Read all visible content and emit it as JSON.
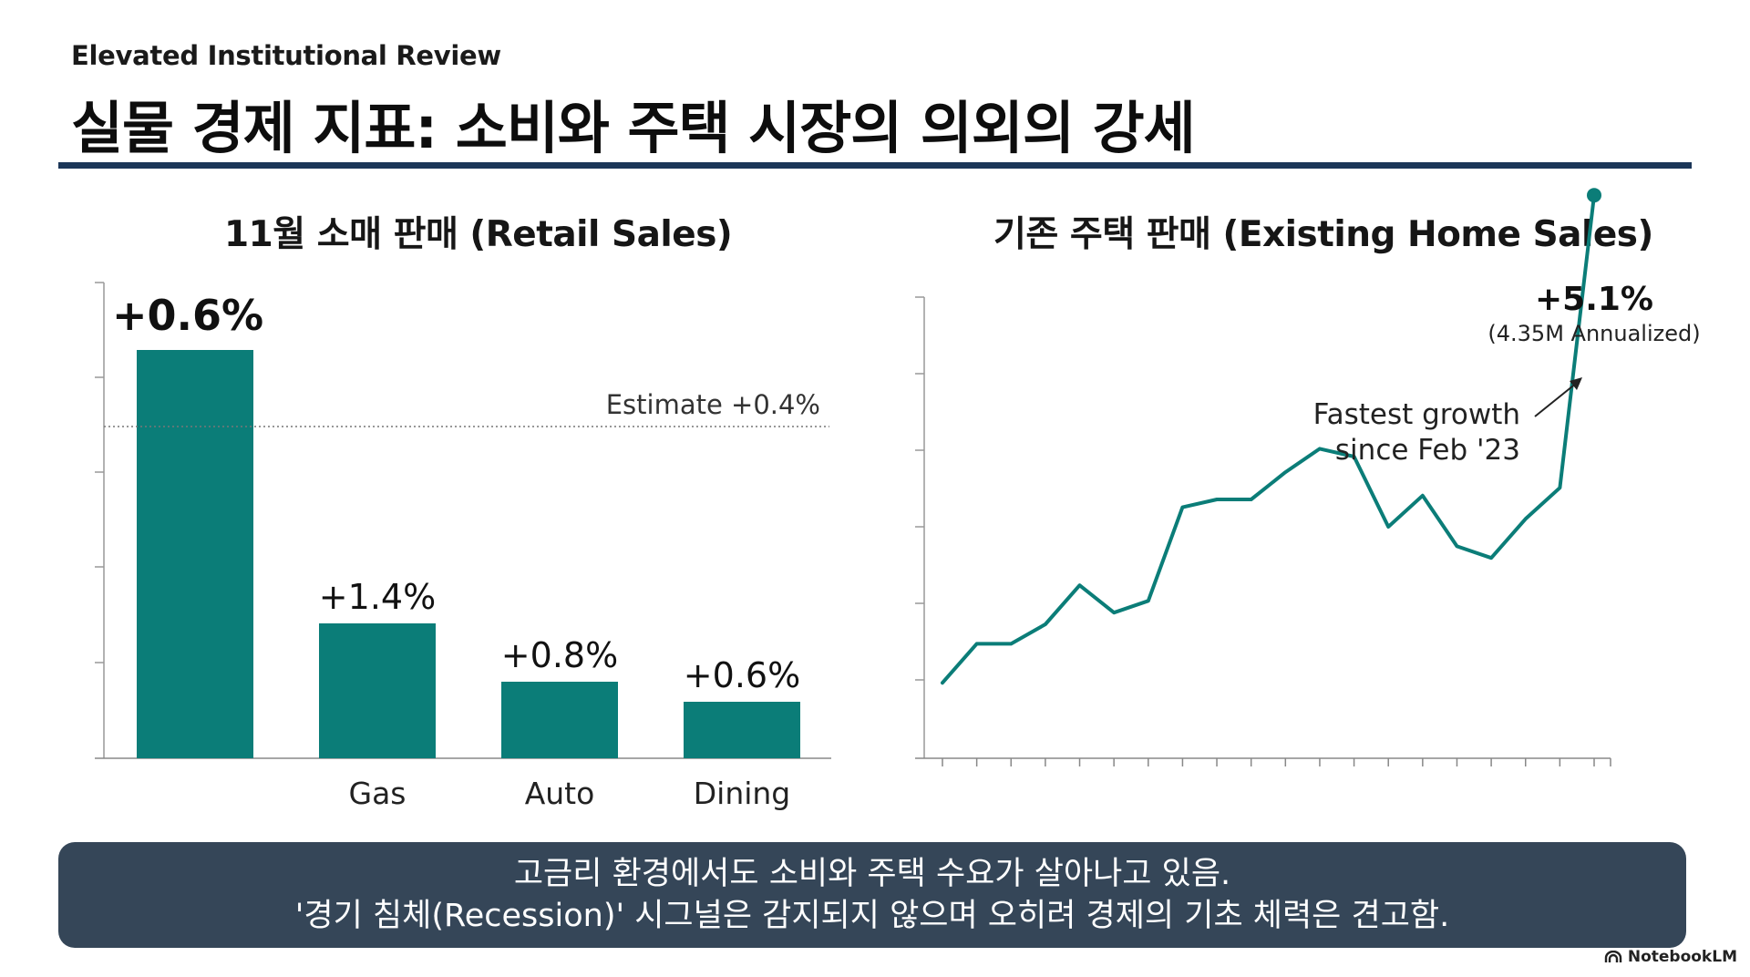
{
  "header": {
    "subtitle": "Elevated Institutional Review",
    "title": "실물 경제 지표: 소비와 주택 시장의 의외의 강세"
  },
  "colors": {
    "accent": "#0b7d78",
    "rule": "#1b3658",
    "footer_bg": "#354658"
  },
  "chart_data": [
    {
      "type": "bar",
      "title": "11월 소매 판매 (Retail Sales)",
      "categories": [
        "",
        "Gas",
        "Auto",
        "Dining"
      ],
      "values": [
        0.6,
        1.4,
        0.8,
        0.6
      ],
      "data_labels": [
        "+0.6%",
        "+1.4%",
        "+0.8%",
        "+0.6%"
      ],
      "reference_line": {
        "label": "Estimate +0.4%",
        "value": 0.4
      },
      "xlabel": "",
      "ylabel": ""
    },
    {
      "type": "line",
      "title": "기존 주택 판매 (Existing Home Sales)",
      "values": [
        10,
        20,
        20,
        25,
        35,
        28,
        31,
        55,
        57,
        57,
        64,
        70,
        68,
        50,
        58,
        45,
        42,
        52,
        60,
        135
      ],
      "final_label": "+5.1%",
      "final_sublabel": "(4.35M Annualized)",
      "annotation": [
        "Fastest growth",
        "since Feb '23"
      ],
      "xlabel": "",
      "ylabel": ""
    }
  ],
  "footer": {
    "line1": "고금리 환경에서도 소비와 주택 수요가 살아나고 있음.",
    "line2": "'경기 침체(Recession)' 시그널은 감지되지 않으며 오히려 경제의 기초 체력은 견고함."
  },
  "brand": {
    "icon": "notebooklm-icon",
    "name": "NotebookLM"
  }
}
